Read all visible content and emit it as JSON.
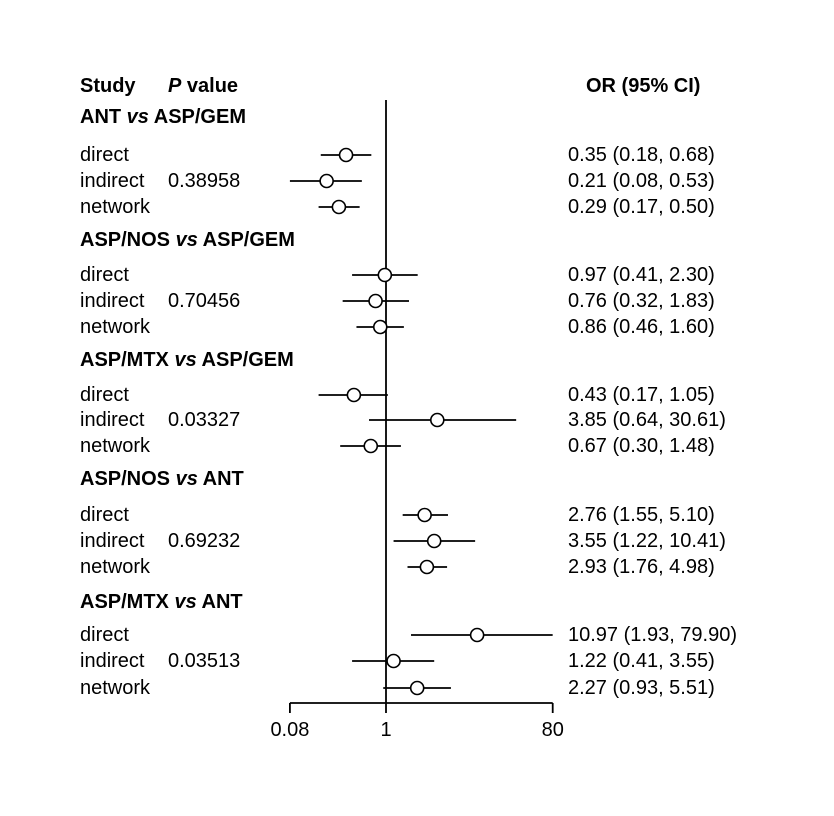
{
  "page": {
    "background": "#ffffff",
    "ink": "#000000"
  },
  "headers": {
    "study": "Study",
    "p_italic": "P",
    "p_rest": " value",
    "or": "OR (95% CI)"
  },
  "axis": {
    "ticks": [
      "0.08",
      "1",
      "80"
    ]
  },
  "chart_data": {
    "type": "forest",
    "x_scale": "log10",
    "x_ticks": [
      0.08,
      1,
      80
    ],
    "x_range": [
      0.08,
      80
    ],
    "reference_line": 1,
    "marker": "open-circle",
    "marker_fill": "#ffffff",
    "line_color": "#000000",
    "column_headers": [
      "Study",
      "P value",
      "OR (95% CI)"
    ],
    "groups": [
      {
        "comparison": {
          "left": "ANT",
          "vs": "vs",
          "right": "ASP/GEM"
        },
        "rows": [
          {
            "study": "direct",
            "p_value": "",
            "or": 0.35,
            "ci_low": 0.18,
            "ci_high": 0.68,
            "or_text": "0.35 (0.18, 0.68)"
          },
          {
            "study": "indirect",
            "p_value": "0.38958",
            "or": 0.21,
            "ci_low": 0.08,
            "ci_high": 0.53,
            "or_text": "0.21 (0.08, 0.53)"
          },
          {
            "study": "network",
            "p_value": "",
            "or": 0.29,
            "ci_low": 0.17,
            "ci_high": 0.5,
            "or_text": "0.29 (0.17, 0.50)"
          }
        ]
      },
      {
        "comparison": {
          "left": "ASP/NOS",
          "vs": "vs",
          "right": "ASP/GEM"
        },
        "rows": [
          {
            "study": "direct",
            "p_value": "",
            "or": 0.97,
            "ci_low": 0.41,
            "ci_high": 2.3,
            "or_text": "0.97 (0.41, 2.30)"
          },
          {
            "study": "indirect",
            "p_value": "0.70456",
            "or": 0.76,
            "ci_low": 0.32,
            "ci_high": 1.83,
            "or_text": "0.76 (0.32, 1.83)"
          },
          {
            "study": "network",
            "p_value": "",
            "or": 0.86,
            "ci_low": 0.46,
            "ci_high": 1.6,
            "or_text": "0.86 (0.46, 1.60)"
          }
        ]
      },
      {
        "comparison": {
          "left": "ASP/MTX",
          "vs": "vs",
          "right": "ASP/GEM"
        },
        "rows": [
          {
            "study": "direct",
            "p_value": "",
            "or": 0.43,
            "ci_low": 0.17,
            "ci_high": 1.05,
            "or_text": "0.43 (0.17, 1.05)"
          },
          {
            "study": "indirect",
            "p_value": "0.03327",
            "or": 3.85,
            "ci_low": 0.64,
            "ci_high": 30.61,
            "or_text": "3.85 (0.64, 30.61)"
          },
          {
            "study": "network",
            "p_value": "",
            "or": 0.67,
            "ci_low": 0.3,
            "ci_high": 1.48,
            "or_text": "0.67 (0.30, 1.48)"
          }
        ]
      },
      {
        "comparison": {
          "left": "ASP/NOS",
          "vs": "vs",
          "right": "ANT"
        },
        "rows": [
          {
            "study": "direct",
            "p_value": "",
            "or": 2.76,
            "ci_low": 1.55,
            "ci_high": 5.1,
            "or_text": "2.76 (1.55, 5.10)"
          },
          {
            "study": "indirect",
            "p_value": "0.69232",
            "or": 3.55,
            "ci_low": 1.22,
            "ci_high": 10.41,
            "or_text": "3.55 (1.22, 10.41)"
          },
          {
            "study": "network",
            "p_value": "",
            "or": 2.93,
            "ci_low": 1.76,
            "ci_high": 4.98,
            "or_text": "2.93 (1.76, 4.98)"
          }
        ]
      },
      {
        "comparison": {
          "left": "ASP/MTX",
          "vs": "vs",
          "right": "ANT"
        },
        "rows": [
          {
            "study": "direct",
            "p_value": "",
            "or": 10.97,
            "ci_low": 1.93,
            "ci_high": 79.9,
            "or_text": "10.97 (1.93, 79.90)"
          },
          {
            "study": "indirect",
            "p_value": "0.03513",
            "or": 1.22,
            "ci_low": 0.41,
            "ci_high": 3.55,
            "or_text": "1.22 (0.41, 3.55)"
          },
          {
            "study": "network",
            "p_value": "",
            "or": 2.27,
            "ci_low": 0.93,
            "ci_high": 5.51,
            "or_text": "2.27 (0.93, 5.51)"
          }
        ]
      }
    ]
  }
}
